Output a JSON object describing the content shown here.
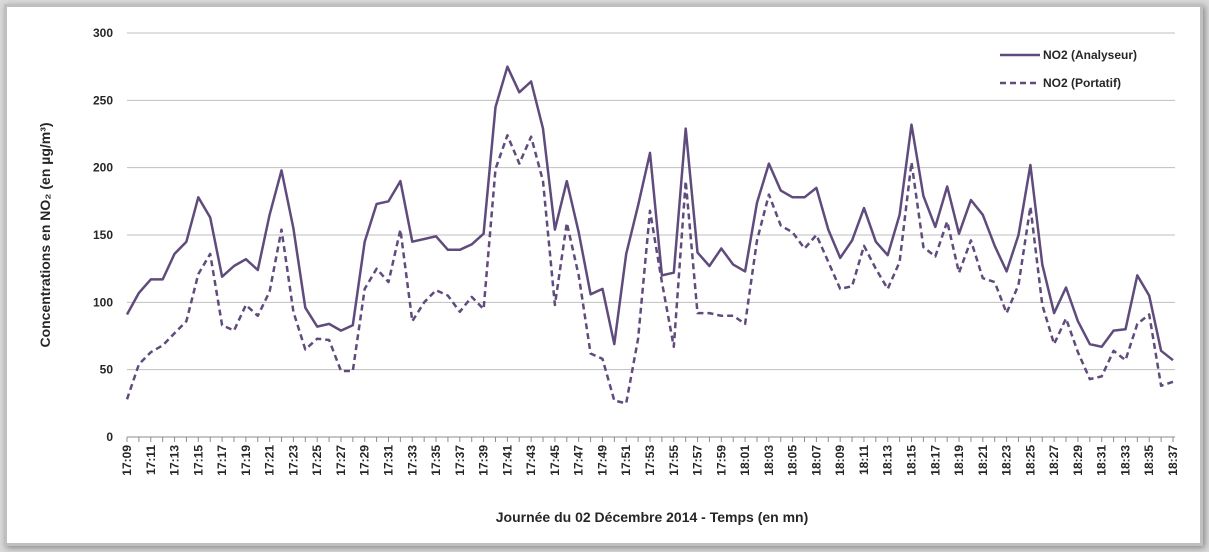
{
  "chart_data": {
    "type": "line",
    "x_label": "Journée du 02 Décembre 2014 - Temps (en mn)",
    "y_label": "Concentrations en NO₂ (en µg/m³)",
    "categories": [
      "17:09",
      null,
      "17:11",
      null,
      "17:13",
      null,
      "17:15",
      null,
      "17:17",
      null,
      "17:19",
      null,
      "17:21",
      null,
      "17:23",
      null,
      "17:25",
      null,
      "17:27",
      null,
      "17:29",
      null,
      "17:31",
      null,
      "17:33",
      null,
      "17:35",
      null,
      "17:37",
      null,
      "17:39",
      null,
      "17:41",
      null,
      "17:43",
      null,
      "17:45",
      null,
      "17:47",
      null,
      "17:49",
      null,
      "17:51",
      null,
      "17:53",
      null,
      "17:55",
      null,
      "17:57",
      null,
      "17:59",
      null,
      "18:01",
      null,
      "18:03",
      null,
      "18:05",
      null,
      "18:07",
      null,
      "18:09",
      null,
      "18:11",
      null,
      "18:13",
      null,
      "18:15",
      null,
      "18:17",
      null,
      "18:19",
      null,
      "18:21",
      null,
      "18:23",
      null,
      "18:25",
      null,
      "18:27",
      null,
      "18:29",
      null,
      "18:31",
      null,
      "18:33",
      null,
      "18:35",
      null,
      "18:37"
    ],
    "series": [
      {
        "name": "NO2 (Analyseur)",
        "color": "#5f4b7c",
        "dash": false,
        "values": [
          91,
          107,
          117,
          117,
          136,
          145,
          178,
          163,
          119,
          127,
          132,
          124,
          165,
          198,
          155,
          96,
          82,
          84,
          79,
          83,
          145,
          173,
          175,
          190,
          145,
          147,
          149,
          139,
          139,
          143,
          151,
          245,
          275,
          256,
          264,
          229,
          154,
          190,
          152,
          106,
          110,
          69,
          136,
          172,
          211,
          120,
          122,
          229,
          137,
          127,
          140,
          128,
          123,
          174,
          203,
          183,
          178,
          178,
          185,
          154,
          133,
          146,
          170,
          145,
          135,
          165,
          232,
          179,
          156,
          186,
          151,
          176,
          165,
          142,
          123,
          150,
          202,
          128,
          92,
          111,
          86,
          69,
          67,
          79,
          80,
          120,
          105,
          64,
          57
        ]
      },
      {
        "name": "NO2 (Portatif)",
        "color": "#5f4b7c",
        "dash": true,
        "values": [
          28,
          54,
          63,
          68,
          77,
          86,
          121,
          136,
          83,
          79,
          98,
          90,
          108,
          154,
          93,
          65,
          73,
          72,
          49,
          49,
          110,
          125,
          115,
          154,
          86,
          100,
          109,
          105,
          93,
          104,
          95,
          199,
          224,
          203,
          223,
          190,
          98,
          159,
          120,
          62,
          58,
          27,
          25,
          73,
          168,
          115,
          67,
          190,
          92,
          92,
          90,
          90,
          84,
          146,
          180,
          157,
          152,
          140,
          150,
          130,
          110,
          112,
          142,
          125,
          110,
          130,
          204,
          141,
          134,
          160,
          122,
          146,
          118,
          115,
          92,
          113,
          171,
          98,
          69,
          88,
          63,
          43,
          45,
          64,
          57,
          84,
          91,
          38,
          41
        ]
      }
    ],
    "ylim": [
      0,
      300
    ],
    "yticks": [
      0,
      50,
      100,
      150,
      200,
      250,
      300
    ],
    "grid": true,
    "legend": "top-right"
  }
}
